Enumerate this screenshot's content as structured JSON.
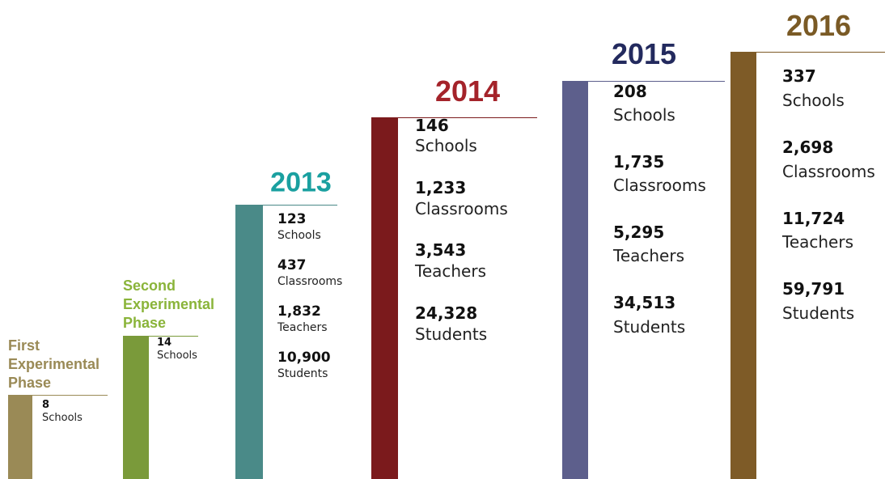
{
  "stages": [
    {
      "title": "First Experimental Phase",
      "stats": [
        {
          "value": "8",
          "label": "Schools"
        }
      ]
    },
    {
      "title": "Second Experimental Phase",
      "stats": [
        {
          "value": "14",
          "label": "Schools"
        }
      ]
    },
    {
      "title": "2013",
      "stats": [
        {
          "value": "123",
          "label": "Schools"
        },
        {
          "value": "437",
          "label": "Classrooms"
        },
        {
          "value": "1,832",
          "label": "Teachers"
        },
        {
          "value": "10,900",
          "label": "Students"
        }
      ]
    },
    {
      "title": "2014",
      "stats": [
        {
          "value": "146",
          "label": "Schools"
        },
        {
          "value": "1,233",
          "label": "Classrooms"
        },
        {
          "value": "3,543",
          "label": "Teachers"
        },
        {
          "value": "24,328",
          "label": "Students"
        }
      ]
    },
    {
      "title": "2015",
      "stats": [
        {
          "value": "208",
          "label": "Schools"
        },
        {
          "value": "1,735",
          "label": "Classrooms"
        },
        {
          "value": "5,295",
          "label": "Teachers"
        },
        {
          "value": "34,513",
          "label": "Students"
        }
      ]
    },
    {
      "title": "2016",
      "stats": [
        {
          "value": "337",
          "label": "Schools"
        },
        {
          "value": "2,698",
          "label": "Classrooms"
        },
        {
          "value": "11,724",
          "label": "Teachers"
        },
        {
          "value": "59,791",
          "label": "Students"
        }
      ]
    }
  ]
}
